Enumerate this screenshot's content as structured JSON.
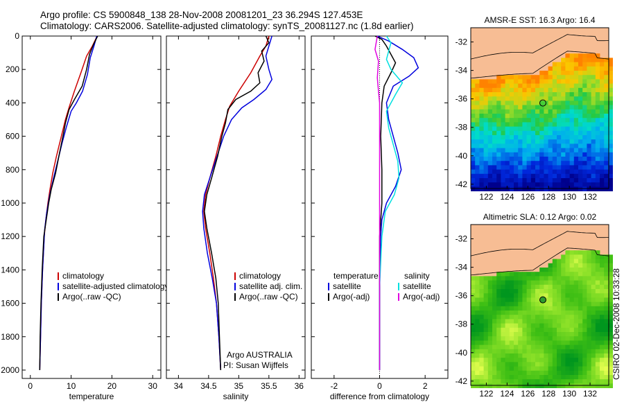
{
  "header": {
    "line1": "Argo profile: CS 5900848_138 28-Nov-2008 20081201_23 36.294S 127.453E",
    "line2": "Climatology: CARS2006. Satellite-adjusted climatology: synTS_20081127.nc (1.8d earlier)"
  },
  "credit": "CSIRO 02-Dec-2008 10:33:28",
  "colors": {
    "climatology": "#cc0000",
    "satellite": "#0000dd",
    "argo": "#000000",
    "satellite_diff_salinity": "#00e0e0",
    "argo_adj_salinity": "#e000e0",
    "land": "#f7bd94"
  },
  "chart_data": [
    {
      "type": "line",
      "name": "temperature-profile",
      "xlabel": "temperature",
      "ylabel": "",
      "xlim": [
        -2,
        32
      ],
      "ylim": [
        2050,
        0
      ],
      "x_ticks": [
        0,
        10,
        20,
        30
      ],
      "y_ticks": [
        0,
        200,
        400,
        600,
        800,
        1000,
        1200,
        1400,
        1600,
        1800,
        2000
      ],
      "legend": [
        "climatology",
        "satellite-adjusted climatology",
        "Argo(..raw -QC)"
      ],
      "legend_position": "lower-right",
      "series": [
        {
          "name": "climatology",
          "color": "#cc0000",
          "points": [
            [
              16.4,
              0
            ],
            [
              15.2,
              60
            ],
            [
              13.8,
              120
            ],
            [
              12.4,
              220
            ],
            [
              10.8,
              330
            ],
            [
              9.6,
              420
            ],
            [
              8.6,
              500
            ],
            [
              7.6,
              600
            ],
            [
              6.4,
              720
            ],
            [
              5.5,
              820
            ],
            [
              4.8,
              920
            ],
            [
              4.3,
              1000
            ],
            [
              3.8,
              1100
            ],
            [
              3.4,
              1200
            ],
            [
              3.0,
              1400
            ],
            [
              2.7,
              1600
            ],
            [
              2.5,
              1800
            ],
            [
              2.3,
              2000
            ]
          ]
        },
        {
          "name": "satellite-adjusted climatology",
          "color": "#0000dd",
          "points": [
            [
              16.3,
              0
            ],
            [
              15.6,
              60
            ],
            [
              14.7,
              130
            ],
            [
              14.0,
              230
            ],
            [
              12.8,
              330
            ],
            [
              11.3,
              400
            ],
            [
              10.0,
              450
            ],
            [
              8.9,
              540
            ],
            [
              7.8,
              640
            ],
            [
              6.6,
              760
            ],
            [
              5.6,
              860
            ],
            [
              4.7,
              960
            ],
            [
              4.0,
              1060
            ],
            [
              3.5,
              1160
            ],
            [
              3.0,
              1400
            ],
            [
              2.7,
              1600
            ],
            [
              2.5,
              1800
            ],
            [
              2.3,
              2000
            ]
          ]
        },
        {
          "name": "Argo(..raw -QC)",
          "color": "#000000",
          "points": [
            [
              16.5,
              0
            ],
            [
              15.5,
              50
            ],
            [
              14.5,
              110
            ],
            [
              13.8,
              200
            ],
            [
              12.7,
              300
            ],
            [
              10.8,
              380
            ],
            [
              9.5,
              440
            ],
            [
              8.6,
              520
            ],
            [
              8.0,
              600
            ],
            [
              7.0,
              720
            ],
            [
              6.2,
              820
            ],
            [
              5.1,
              920
            ],
            [
              4.5,
              1000
            ],
            [
              3.9,
              1100
            ],
            [
              3.3,
              1200
            ],
            [
              2.9,
              1400
            ],
            [
              2.6,
              1600
            ],
            [
              2.4,
              1800
            ],
            [
              2.3,
              2000
            ]
          ]
        }
      ]
    },
    {
      "type": "line",
      "name": "salinity-profile",
      "xlabel": "salinity",
      "ylabel": "",
      "xlim": [
        33.8,
        36.1
      ],
      "ylim": [
        2050,
        0
      ],
      "x_ticks": [
        34,
        34.5,
        35,
        35.5,
        36
      ],
      "legend": [
        "climatology",
        "satellite adj. clim.",
        "Argo(..raw -QC)"
      ],
      "legend_position": "lower-right",
      "annotations": [
        "Argo AUSTRALIA",
        "PI: Susan Wijffels"
      ],
      "series": [
        {
          "name": "climatology",
          "color": "#cc0000",
          "points": [
            [
              35.5,
              0
            ],
            [
              35.45,
              60
            ],
            [
              35.35,
              120
            ],
            [
              35.2,
              220
            ],
            [
              35.0,
              330
            ],
            [
              34.85,
              420
            ],
            [
              34.78,
              500
            ],
            [
              34.7,
              600
            ],
            [
              34.62,
              720
            ],
            [
              34.52,
              850
            ],
            [
              34.45,
              950
            ],
            [
              34.42,
              1050
            ],
            [
              34.45,
              1150
            ],
            [
              34.52,
              1300
            ],
            [
              34.58,
              1450
            ],
            [
              34.63,
              1600
            ],
            [
              34.67,
              1800
            ],
            [
              34.7,
              2000
            ]
          ]
        },
        {
          "name": "satellite adj. clim.",
          "color": "#0000dd",
          "points": [
            [
              35.55,
              0
            ],
            [
              35.5,
              60
            ],
            [
              35.45,
              120
            ],
            [
              35.5,
              200
            ],
            [
              35.55,
              260
            ],
            [
              35.45,
              320
            ],
            [
              35.25,
              380
            ],
            [
              35.05,
              430
            ],
            [
              34.88,
              500
            ],
            [
              34.75,
              600
            ],
            [
              34.64,
              720
            ],
            [
              34.52,
              850
            ],
            [
              34.43,
              950
            ],
            [
              34.4,
              1050
            ],
            [
              34.42,
              1150
            ],
            [
              34.48,
              1300
            ],
            [
              34.56,
              1450
            ],
            [
              34.63,
              1600
            ],
            [
              34.67,
              1800
            ],
            [
              34.7,
              2000
            ]
          ]
        },
        {
          "name": "Argo(..raw -QC)",
          "color": "#000000",
          "points": [
            [
              35.45,
              0
            ],
            [
              35.5,
              40
            ],
            [
              35.38,
              90
            ],
            [
              35.42,
              150
            ],
            [
              35.32,
              220
            ],
            [
              35.35,
              280
            ],
            [
              35.2,
              330
            ],
            [
              34.95,
              380
            ],
            [
              34.82,
              440
            ],
            [
              34.78,
              520
            ],
            [
              34.72,
              600
            ],
            [
              34.65,
              720
            ],
            [
              34.55,
              850
            ],
            [
              34.47,
              950
            ],
            [
              34.43,
              1050
            ],
            [
              34.47,
              1150
            ],
            [
              34.55,
              1300
            ],
            [
              34.62,
              1450
            ],
            [
              34.66,
              1600
            ],
            [
              34.68,
              1800
            ],
            [
              34.7,
              2000
            ]
          ]
        }
      ]
    },
    {
      "type": "line",
      "name": "difference-profile",
      "xlabel": "difference from climatology",
      "ylabel": "",
      "xlim": [
        -3,
        3
      ],
      "ylim": [
        2050,
        0
      ],
      "x_ticks": [
        -2,
        0,
        2
      ],
      "legend": [
        "temperature",
        "satellite",
        "Argo(-adj)",
        "salinity",
        "satellite",
        "Argo(-adj)"
      ],
      "legend_position": "lower-center",
      "series": [
        {
          "name": "temperature satellite",
          "color": "#0000dd",
          "points": [
            [
              -0.1,
              0
            ],
            [
              0.4,
              30
            ],
            [
              1.0,
              80
            ],
            [
              1.5,
              130
            ],
            [
              1.7,
              190
            ],
            [
              1.3,
              240
            ],
            [
              0.6,
              300
            ],
            [
              0.3,
              400
            ],
            [
              0.4,
              500
            ],
            [
              0.6,
              600
            ],
            [
              0.8,
              700
            ],
            [
              0.95,
              800
            ],
            [
              0.7,
              900
            ],
            [
              0.3,
              1000
            ],
            [
              0.1,
              1100
            ],
            [
              0.05,
              1200
            ],
            [
              0.0,
              1500
            ],
            [
              0.0,
              2000
            ]
          ]
        },
        {
          "name": "temperature Argo(-adj)",
          "color": "#000000",
          "points": [
            [
              -0.2,
              0
            ],
            [
              0.1,
              20
            ],
            [
              0.3,
              60
            ],
            [
              0.5,
              110
            ],
            [
              0.7,
              160
            ],
            [
              0.5,
              220
            ],
            [
              0.2,
              300
            ],
            [
              0.1,
              400
            ],
            [
              0.05,
              600
            ],
            [
              0.1,
              800
            ],
            [
              0.1,
              1000
            ],
            [
              0.0,
              1200
            ],
            [
              0.0,
              1600
            ],
            [
              0.0,
              2000
            ]
          ]
        },
        {
          "name": "salinity satellite",
          "color": "#00e0e0",
          "points": [
            [
              0.3,
              0
            ],
            [
              0.5,
              40
            ],
            [
              0.4,
              90
            ],
            [
              0.3,
              140
            ],
            [
              0.5,
              200
            ],
            [
              1.0,
              280
            ],
            [
              0.7,
              350
            ],
            [
              0.3,
              450
            ],
            [
              0.4,
              550
            ],
            [
              0.6,
              650
            ],
            [
              0.8,
              750
            ],
            [
              0.85,
              850
            ],
            [
              0.65,
              950
            ],
            [
              0.25,
              1050
            ],
            [
              0.1,
              1200
            ],
            [
              0.0,
              1500
            ],
            [
              0.0,
              2000
            ]
          ]
        },
        {
          "name": "salinity Argo(-adj)",
          "color": "#e000e0",
          "points": [
            [
              -0.1,
              0
            ],
            [
              -0.2,
              80
            ],
            [
              -0.05,
              150
            ],
            [
              -0.1,
              250
            ],
            [
              -0.05,
              330
            ],
            [
              0.0,
              400
            ],
            [
              0.0,
              2000
            ]
          ]
        }
      ]
    },
    {
      "type": "heatmap",
      "name": "sst-map",
      "title": "AMSR-E SST: 16.3  Argo: 16.4",
      "x_ticks": [
        122,
        124,
        126,
        128,
        130,
        132
      ],
      "y_ticks": [
        -32,
        -34,
        -36,
        -38,
        -40,
        -42
      ],
      "xlim": [
        120.5,
        133.8
      ],
      "ylim": [
        -42.3,
        -31.0
      ],
      "argo_position": [
        127.45,
        -36.29
      ]
    },
    {
      "type": "heatmap",
      "name": "sla-map",
      "title": "Altimetric SLA: 0.12  Argo: 0.02",
      "x_ticks": [
        122,
        124,
        126,
        128,
        130,
        132
      ],
      "y_ticks": [
        -32,
        -34,
        -36,
        -38,
        -40,
        -42
      ],
      "xlim": [
        120.5,
        133.8
      ],
      "ylim": [
        -42.3,
        -31.0
      ],
      "argo_position": [
        127.45,
        -36.29
      ]
    }
  ]
}
